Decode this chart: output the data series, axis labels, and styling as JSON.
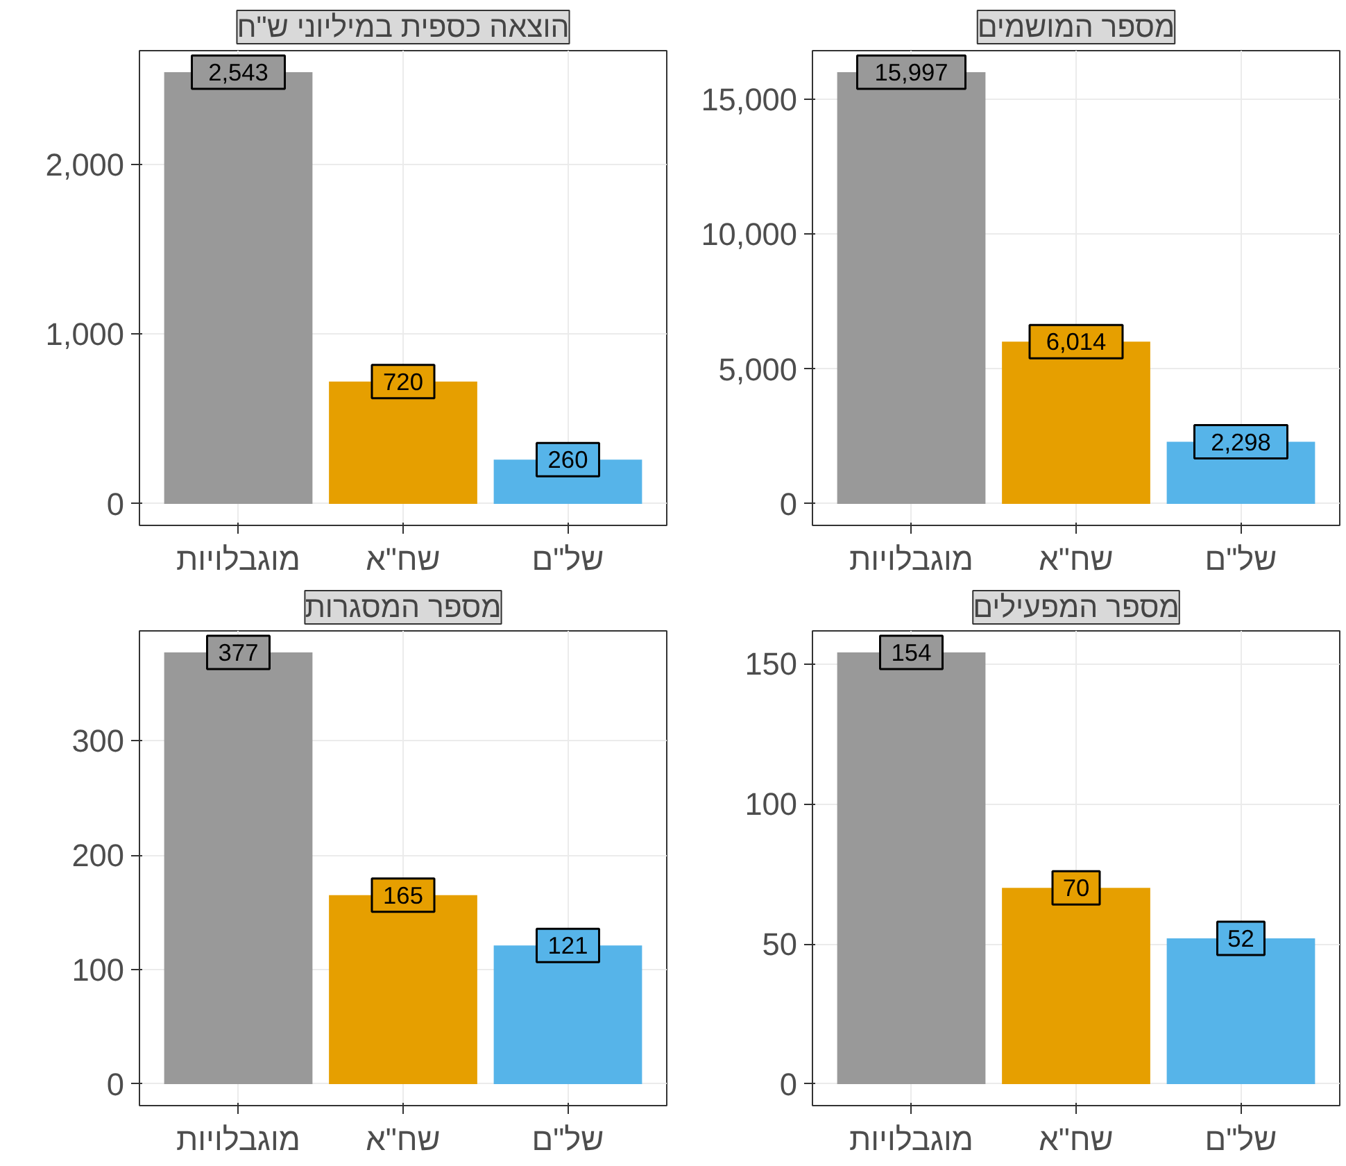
{
  "chart_data": [
    {
      "type": "bar",
      "title": "הוצאה כספית במיליוני ש\"ח",
      "categories": [
        "מוגבלויות",
        "שח\"א",
        "של\"ם"
      ],
      "values": [
        2543,
        720,
        260
      ],
      "value_labels": [
        "2,543",
        "720",
        "260"
      ],
      "colors": [
        "#999999",
        "#e69f00",
        "#56b4e9"
      ],
      "ylim": [
        -127,
        2670
      ],
      "yticks": [
        {
          "value": 0,
          "label": "0"
        },
        {
          "value": 1000,
          "label": "1,000"
        },
        {
          "value": 2000,
          "label": "2,000"
        }
      ],
      "grid": true
    },
    {
      "type": "bar",
      "title": "מספר המושמים",
      "categories": [
        "מוגבלויות",
        "שח\"א",
        "של\"ם"
      ],
      "values": [
        15997,
        6014,
        2298
      ],
      "value_labels": [
        "15,997",
        "6,014",
        "2,298"
      ],
      "colors": [
        "#999999",
        "#e69f00",
        "#56b4e9"
      ],
      "ylim": [
        -800,
        16797
      ],
      "yticks": [
        {
          "value": 0,
          "label": "0"
        },
        {
          "value": 5000,
          "label": "5,000"
        },
        {
          "value": 10000,
          "label": "10,000"
        },
        {
          "value": 15000,
          "label": "15,000"
        }
      ],
      "grid": true
    },
    {
      "type": "bar",
      "title": "מספר המסגרות",
      "categories": [
        "מוגבלויות",
        "שח\"א",
        "של\"ם"
      ],
      "values": [
        377,
        165,
        121
      ],
      "value_labels": [
        "377",
        "165",
        "121"
      ],
      "colors": [
        "#999999",
        "#e69f00",
        "#56b4e9"
      ],
      "ylim": [
        -18.85,
        395.85
      ],
      "yticks": [
        0,
        100,
        200,
        300
      ],
      "grid": true
    },
    {
      "type": "bar",
      "title": "מספר המפעילים",
      "categories": [
        "מוגבלויות",
        "שח\"א",
        "של\"ם"
      ],
      "values": [
        154,
        70,
        52
      ],
      "value_labels": [
        "154",
        "70",
        "52"
      ],
      "colors": [
        "#999999",
        "#e69f00",
        "#56b4e9"
      ],
      "ylim": [
        -7.7,
        161.7
      ],
      "yticks": [
        0,
        50,
        100,
        150
      ],
      "grid": true
    }
  ]
}
